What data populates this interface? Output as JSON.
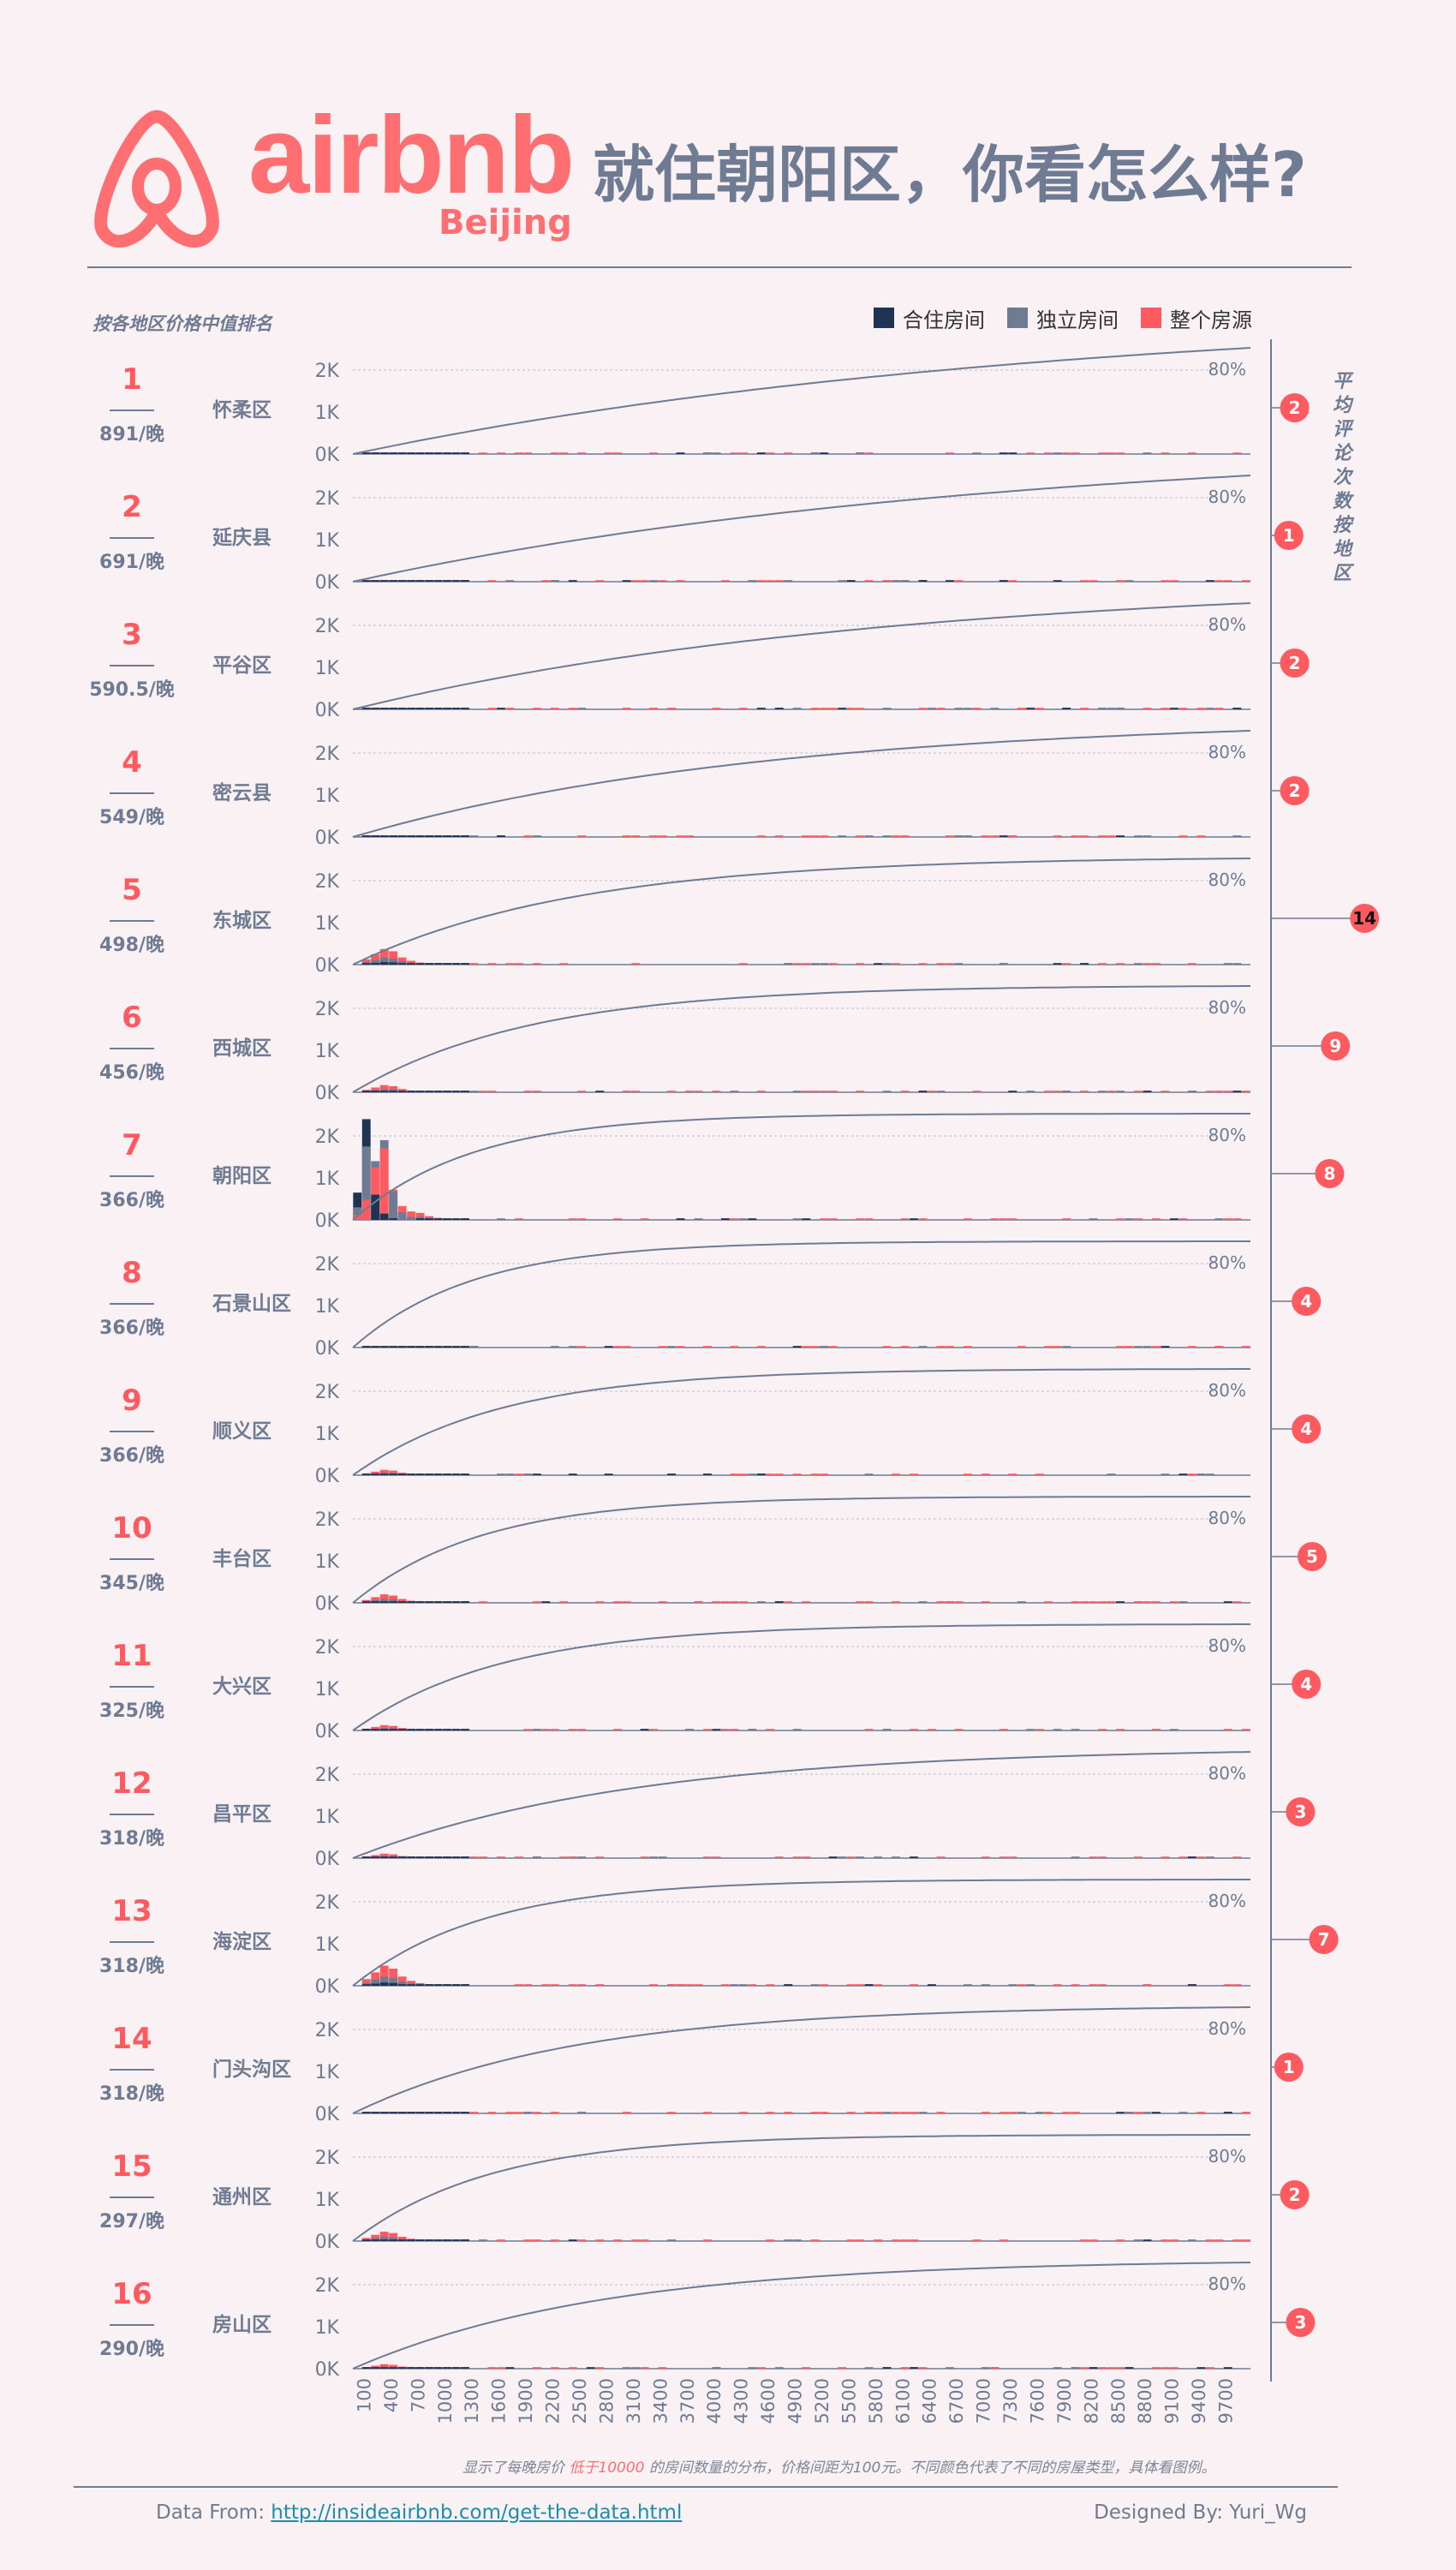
{
  "header": {
    "logo_word": "airbnb",
    "logo_city": "Beijing",
    "headline": "就住朝阳区，你看怎么样?"
  },
  "rank_caption": "按各地区价格中值排名",
  "right_caption": [
    "平",
    "均",
    "评",
    "论",
    "次",
    "数",
    "按",
    "地",
    "区"
  ],
  "legend": [
    {
      "label": "合住房间",
      "color": "#1f3354"
    },
    {
      "label": "独立房间",
      "color": "#6e7b93"
    },
    {
      "label": "整个房源",
      "color": "#ff5a5f"
    }
  ],
  "colors": {
    "accent": "#ff5a5f",
    "shared": "#1f3354",
    "private": "#6e7b93",
    "line": "#6e7b93"
  },
  "chart_data": {
    "type": "bar",
    "description_type": "small-multiple histograms with cumulative line",
    "y_ticks": [
      "2K",
      "1K",
      "0K"
    ],
    "pct_label": "80%",
    "x_tick_labels": [
      "100",
      "400",
      "700",
      "1000",
      "1300",
      "1600",
      "1900",
      "2200",
      "2500",
      "2800",
      "3100",
      "3400",
      "3700",
      "4000",
      "4300",
      "4600",
      "4900",
      "5200",
      "5500",
      "5800",
      "6100",
      "6400",
      "6700",
      "7000",
      "7300",
      "7600",
      "7900",
      "8200",
      "8500",
      "8800",
      "9100",
      "9400",
      "9700"
    ],
    "districts": [
      {
        "rank": "1",
        "name": "怀柔区",
        "median": "891/晚",
        "reviews": "2",
        "median_value": 891,
        "review_value": 2
      },
      {
        "rank": "2",
        "name": "延庆县",
        "median": "691/晚",
        "reviews": "1",
        "median_value": 691,
        "review_value": 1
      },
      {
        "rank": "3",
        "name": "平谷区",
        "median": "590.5/晚",
        "reviews": "2",
        "median_value": 590.5,
        "review_value": 2
      },
      {
        "rank": "4",
        "name": "密云县",
        "median": "549/晚",
        "reviews": "2",
        "median_value": 549,
        "review_value": 2
      },
      {
        "rank": "5",
        "name": "东城区",
        "median": "498/晚",
        "reviews": "14",
        "median_value": 498,
        "review_value": 14
      },
      {
        "rank": "6",
        "name": "西城区",
        "median": "456/晚",
        "reviews": "9",
        "median_value": 456,
        "review_value": 9
      },
      {
        "rank": "7",
        "name": "朝阳区",
        "median": "366/晚",
        "reviews": "8",
        "median_value": 366,
        "review_value": 8
      },
      {
        "rank": "8",
        "name": "石景山区",
        "median": "366/晚",
        "reviews": "4",
        "median_value": 366,
        "review_value": 4
      },
      {
        "rank": "9",
        "name": "顺义区",
        "median": "366/晚",
        "reviews": "4",
        "median_value": 366,
        "review_value": 4
      },
      {
        "rank": "10",
        "name": "丰台区",
        "median": "345/晚",
        "reviews": "5",
        "median_value": 345,
        "review_value": 5
      },
      {
        "rank": "11",
        "name": "大兴区",
        "median": "325/晚",
        "reviews": "4",
        "median_value": 325,
        "review_value": 4
      },
      {
        "rank": "12",
        "name": "昌平区",
        "median": "318/晚",
        "reviews": "3",
        "median_value": 318,
        "review_value": 3
      },
      {
        "rank": "13",
        "name": "海淀区",
        "median": "318/晚",
        "reviews": "7",
        "median_value": 318,
        "review_value": 7
      },
      {
        "rank": "14",
        "name": "门头沟区",
        "median": "318/晚",
        "reviews": "1",
        "median_value": 318,
        "review_value": 1
      },
      {
        "rank": "15",
        "name": "通州区",
        "median": "297/晚",
        "reviews": "2",
        "median_value": 297,
        "review_value": 2
      },
      {
        "rank": "16",
        "name": "房山区",
        "median": "290/晚",
        "reviews": "3",
        "median_value": 290,
        "review_value": 3
      }
    ],
    "histogram_bins": {
      "bin_width": 100,
      "chaoyang_entire_home": [
        120,
        480,
        1250,
        1700,
        720,
        330,
        200
      ],
      "chaoyang_private_room": [
        300,
        1750,
        1400,
        1900,
        680,
        180,
        70
      ],
      "chaoyang_shared_room": [
        650,
        2400,
        600,
        150,
        40,
        0,
        0
      ]
    }
  },
  "footer": {
    "footnote_a": "显示了每晚房价",
    "footnote_hl": "低于10000",
    "footnote_b": "的房间数量的分布，价格间距为100元。不同颜色代表了不同的房屋类型，具体看图例。",
    "data_from_label": "Data From:",
    "data_from_link": "http://insideairbnb.com/get-the-data.html",
    "designed_by": "Designed By: Yuri_Wg"
  }
}
